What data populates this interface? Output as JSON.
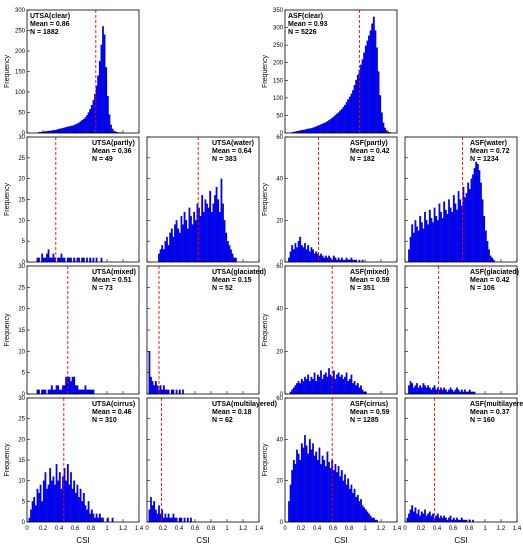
{
  "chart_data": [
    {
      "type": "bar",
      "id": "utsa-clear",
      "title": "UTSA(clear)",
      "mean_label": "Mean = 0.86",
      "n_label": "N = 1882",
      "mean": 0.86,
      "ylabel": "Frequency",
      "xlabel": "",
      "xlim": [
        0,
        1.4
      ],
      "ylim": [
        0,
        300
      ],
      "yticks": [
        "0",
        "50",
        "100",
        "150",
        "200",
        "250",
        "300"
      ],
      "xticks": [],
      "bin_start": 0.0,
      "bin_width": 0.02,
      "values": [
        0,
        0,
        0,
        0,
        0,
        0,
        0,
        2,
        2,
        3,
        3,
        4,
        4,
        5,
        5,
        6,
        7,
        7,
        8,
        9,
        10,
        11,
        12,
        13,
        14,
        15,
        16,
        17,
        18,
        19,
        21,
        23,
        25,
        28,
        31,
        34,
        38,
        43,
        50,
        58,
        68,
        80,
        95,
        115,
        140,
        175,
        215,
        260,
        240,
        160,
        90,
        45,
        20,
        10,
        5,
        3,
        2,
        1,
        1,
        1,
        0,
        0,
        0,
        0,
        0,
        0,
        0,
        0,
        0,
        0
      ]
    },
    {
      "type": "bar",
      "id": "asf-clear",
      "title": "ASF(clear)",
      "mean_label": "Mean = 0.93",
      "n_label": "N = 5226",
      "mean": 0.93,
      "ylabel": "Frequency",
      "xlabel": "",
      "xlim": [
        0,
        1.4
      ],
      "ylim": [
        0,
        360
      ],
      "yticks": [
        "0",
        "50",
        "100",
        "150",
        "200",
        "250",
        "300",
        "350"
      ],
      "xticks": [],
      "bin_start": 0.0,
      "bin_width": 0.02,
      "values": [
        0,
        0,
        0,
        0,
        2,
        3,
        4,
        5,
        6,
        7,
        8,
        9,
        10,
        11,
        12,
        13,
        14,
        15,
        17,
        19,
        21,
        23,
        25,
        27,
        29,
        31,
        34,
        37,
        40,
        44,
        48,
        52,
        56,
        60,
        65,
        70,
        76,
        82,
        90,
        98,
        106,
        115,
        125,
        140,
        155,
        170,
        185,
        200,
        215,
        235,
        255,
        270,
        285,
        300,
        320,
        340,
        300,
        250,
        180,
        110,
        60,
        30,
        15,
        8,
        4,
        2,
        1,
        0,
        0,
        0
      ]
    },
    {
      "type": "bar",
      "id": "utsa-partly",
      "title": "UTSA(partly)",
      "mean_label": "Mean = 0.36",
      "n_label": "N = 49",
      "mean": 0.36,
      "ylabel": "Frequency",
      "xlabel": "",
      "xlim": [
        0,
        1.4
      ],
      "ylim": [
        0,
        30
      ],
      "yticks": [
        "0",
        "5",
        "10",
        "15",
        "20",
        "25",
        "30"
      ],
      "xticks": [],
      "bin_start": 0.0,
      "bin_width": 0.02,
      "values": [
        0,
        0,
        0,
        0,
        0,
        0,
        1,
        1,
        0,
        2,
        1,
        1,
        2,
        3,
        1,
        1,
        2,
        1,
        0,
        1,
        1,
        2,
        1,
        1,
        0,
        1,
        1,
        1,
        0,
        1,
        0,
        1,
        1,
        0,
        1,
        1,
        0,
        1,
        0,
        1,
        0,
        1,
        0,
        1,
        0,
        0,
        1,
        0,
        0,
        0,
        0,
        0,
        0,
        0,
        0,
        0,
        0,
        0,
        0,
        0,
        0,
        0,
        0,
        0,
        0,
        0,
        0,
        0,
        0,
        0
      ]
    },
    {
      "type": "bar",
      "id": "utsa-water",
      "title": "UTSA(water)",
      "mean_label": "Mean = 0.64",
      "n_label": "N = 383",
      "mean": 0.64,
      "ylabel": "",
      "xlabel": "",
      "xlim": [
        0,
        1.4
      ],
      "ylim": [
        0,
        30
      ],
      "yticks": [],
      "xticks": [],
      "bin_start": 0.0,
      "bin_width": 0.02,
      "values": [
        0,
        0,
        0,
        0,
        0,
        0,
        0,
        2,
        3,
        4,
        3,
        5,
        6,
        4,
        7,
        8,
        6,
        9,
        10,
        8,
        7,
        11,
        9,
        12,
        10,
        8,
        13,
        11,
        9,
        12,
        10,
        14,
        13,
        11,
        16,
        12,
        15,
        14,
        13,
        17,
        12,
        14,
        16,
        18,
        15,
        12,
        20,
        14,
        10,
        7,
        5,
        4,
        3,
        2,
        1,
        1,
        0,
        0,
        0,
        0,
        0,
        0,
        0,
        0,
        0,
        0,
        0,
        0,
        0,
        0
      ]
    },
    {
      "type": "bar",
      "id": "asf-partly",
      "title": "ASF(partly)",
      "mean_label": "Mean = 0.42",
      "n_label": "N = 182",
      "mean": 0.42,
      "ylabel": "Frequency",
      "xlabel": "",
      "xlim": [
        0,
        1.4
      ],
      "ylim": [
        0,
        60
      ],
      "yticks": [
        "0",
        "20",
        "40",
        "60"
      ],
      "xticks": [],
      "bin_start": 0.0,
      "bin_width": 0.02,
      "values": [
        0,
        0,
        2,
        5,
        8,
        6,
        9,
        7,
        10,
        12,
        8,
        7,
        9,
        6,
        8,
        5,
        7,
        6,
        4,
        5,
        4,
        3,
        4,
        3,
        2,
        3,
        2,
        3,
        2,
        1,
        3,
        2,
        1,
        2,
        1,
        2,
        1,
        1,
        2,
        1,
        1,
        2,
        1,
        1,
        1,
        0,
        1,
        0,
        1,
        0,
        0,
        0,
        0,
        0,
        0,
        0,
        0,
        0,
        0,
        0,
        0,
        0,
        0,
        0,
        0,
        0,
        0,
        0,
        0,
        0
      ]
    },
    {
      "type": "bar",
      "id": "asf-water",
      "title": "ASF(water)",
      "mean_label": "Mean = 0.72",
      "n_label": "N = 1234",
      "mean": 0.72,
      "ylabel": "",
      "xlabel": "",
      "xlim": [
        0,
        1.4
      ],
      "ylim": [
        0,
        60
      ],
      "yticks": [],
      "xticks": [],
      "bin_start": 0.0,
      "bin_width": 0.02,
      "values": [
        0,
        0,
        6,
        12,
        18,
        14,
        20,
        17,
        15,
        22,
        19,
        16,
        24,
        20,
        18,
        25,
        21,
        19,
        26,
        22,
        20,
        28,
        24,
        21,
        29,
        25,
        23,
        30,
        26,
        24,
        32,
        28,
        25,
        34,
        30,
        27,
        36,
        31,
        33,
        38,
        35,
        40,
        42,
        45,
        48,
        47,
        44,
        38,
        30,
        22,
        15,
        10,
        6,
        3,
        2,
        1,
        0,
        0,
        0,
        0,
        0,
        0,
        0,
        0,
        0,
        0,
        0,
        0,
        0,
        0
      ]
    },
    {
      "type": "bar",
      "id": "utsa-mixed",
      "title": "UTSA(mixed)",
      "mean_label": "Mean = 0.51",
      "n_label": "N = 73",
      "mean": 0.51,
      "ylabel": "Frequency",
      "xlabel": "",
      "xlim": [
        0,
        1.4
      ],
      "ylim": [
        0,
        30
      ],
      "yticks": [
        "0",
        "5",
        "10",
        "15",
        "20",
        "25",
        "30"
      ],
      "xticks": [],
      "bin_start": 0.0,
      "bin_width": 0.02,
      "values": [
        0,
        0,
        0,
        0,
        0,
        0,
        1,
        1,
        0,
        1,
        1,
        1,
        0,
        1,
        1,
        2,
        1,
        1,
        2,
        2,
        1,
        1,
        2,
        2,
        4,
        4,
        4,
        3,
        4,
        4,
        2,
        2,
        1,
        1,
        1,
        1,
        2,
        1,
        1,
        1,
        1,
        1,
        0,
        0,
        0,
        0,
        0,
        0,
        0,
        0,
        0,
        0,
        0,
        0,
        0,
        0,
        0,
        0,
        0,
        0,
        0,
        0,
        0,
        0,
        0,
        0,
        0,
        0,
        0,
        0
      ]
    },
    {
      "type": "bar",
      "id": "utsa-glaciated",
      "title": "UTSA(glaciated)",
      "mean_label": "Mean = 0.15",
      "n_label": "N = 52",
      "mean": 0.15,
      "ylabel": "",
      "xlabel": "",
      "xlim": [
        0,
        1.4
      ],
      "ylim": [
        0,
        30
      ],
      "yticks": [],
      "xticks": [],
      "bin_start": 0.0,
      "bin_width": 0.02,
      "values": [
        0,
        10,
        4,
        3,
        2,
        3,
        2,
        1,
        2,
        1,
        2,
        1,
        1,
        1,
        0,
        1,
        1,
        0,
        1,
        0,
        1,
        0,
        1,
        0,
        0,
        0,
        0,
        0,
        0,
        0,
        0,
        0,
        0,
        0,
        0,
        0,
        0,
        0,
        0,
        0,
        0,
        0,
        0,
        0,
        0,
        0,
        0,
        0,
        0,
        0,
        0,
        0,
        0,
        0,
        0,
        0,
        0,
        0,
        0,
        0,
        0,
        0,
        0,
        0,
        0,
        0,
        0,
        0,
        0,
        0
      ]
    },
    {
      "type": "bar",
      "id": "asf-mixed",
      "title": "ASF(mixed)",
      "mean_label": "Mean = 0.59",
      "n_label": "N = 351",
      "mean": 0.59,
      "ylabel": "Frequency",
      "xlabel": "",
      "xlim": [
        0,
        1.4
      ],
      "ylim": [
        0,
        60
      ],
      "yticks": [
        "0",
        "20",
        "40",
        "60"
      ],
      "xticks": [],
      "bin_start": 0.0,
      "bin_width": 0.02,
      "values": [
        0,
        0,
        0,
        1,
        2,
        3,
        4,
        5,
        6,
        5,
        7,
        6,
        8,
        7,
        9,
        6,
        8,
        7,
        10,
        6,
        9,
        8,
        11,
        7,
        9,
        10,
        8,
        12,
        9,
        8,
        11,
        7,
        9,
        10,
        8,
        9,
        7,
        8,
        10,
        6,
        7,
        9,
        5,
        6,
        4,
        5,
        3,
        4,
        2,
        1,
        1,
        0,
        0,
        0,
        0,
        0,
        0,
        0,
        0,
        0,
        0,
        0,
        0,
        0,
        0,
        0,
        0,
        0,
        0,
        0
      ]
    },
    {
      "type": "bar",
      "id": "asf-glaciated",
      "title": "ASF(glaciated)",
      "mean_label": "Mean = 0.42",
      "n_label": "N = 106",
      "mean": 0.42,
      "ylabel": "",
      "xlabel": "",
      "xlim": [
        0,
        1.4
      ],
      "ylim": [
        0,
        60
      ],
      "yticks": [],
      "xticks": [],
      "bin_start": 0.0,
      "bin_width": 0.02,
      "values": [
        0,
        0,
        4,
        6,
        5,
        3,
        4,
        5,
        3,
        4,
        3,
        5,
        4,
        3,
        4,
        3,
        2,
        3,
        4,
        2,
        3,
        2,
        3,
        2,
        3,
        2,
        1,
        2,
        3,
        2,
        1,
        2,
        3,
        2,
        1,
        2,
        1,
        2,
        1,
        1,
        2,
        1,
        1,
        1,
        0,
        0,
        0,
        0,
        0,
        0,
        0,
        0,
        0,
        0,
        0,
        0,
        0,
        0,
        0,
        0,
        0,
        0,
        0,
        0,
        0,
        0,
        0,
        0,
        0,
        0
      ]
    },
    {
      "type": "bar",
      "id": "utsa-cirrus",
      "title": "UTSA(cirrus)",
      "mean_label": "Mean = 0.46",
      "n_label": "N = 310",
      "mean": 0.46,
      "ylabel": "Frequency",
      "xlabel": "CSI",
      "xlim": [
        0,
        1.4
      ],
      "ylim": [
        0,
        30
      ],
      "yticks": [
        "0",
        "5",
        "10",
        "15",
        "20",
        "25",
        "30"
      ],
      "xticks": [
        "0",
        "0.2",
        "0.4",
        "0.6",
        "0.8",
        "1",
        "1.2",
        "1.4"
      ],
      "bin_start": 0.0,
      "bin_width": 0.02,
      "values": [
        0,
        1,
        3,
        5,
        6,
        4,
        8,
        7,
        9,
        5,
        10,
        12,
        8,
        9,
        13,
        10,
        11,
        9,
        14,
        10,
        12,
        8,
        11,
        13,
        10,
        14,
        9,
        12,
        8,
        10,
        7,
        9,
        6,
        8,
        5,
        7,
        4,
        3,
        5,
        2,
        3,
        2,
        1,
        2,
        1,
        2,
        1,
        1,
        0,
        0,
        1,
        0,
        0,
        1,
        0,
        0,
        0,
        0,
        0,
        0,
        0,
        0,
        0,
        0,
        0,
        0,
        0,
        0,
        0,
        0
      ]
    },
    {
      "type": "bar",
      "id": "utsa-multilayered",
      "title": "UTSA(multilayered)",
      "mean_label": "Mean = 0.18",
      "n_label": "N = 62",
      "mean": 0.18,
      "ylabel": "",
      "xlabel": "CSI",
      "xlim": [
        0,
        1.4
      ],
      "ylim": [
        0,
        30
      ],
      "yticks": [],
      "xticks": [
        "0",
        "0.2",
        "0.4",
        "0.6",
        "0.8",
        "1",
        "1.2",
        "1.4"
      ],
      "bin_start": 0.0,
      "bin_width": 0.02,
      "values": [
        0,
        3,
        6,
        4,
        5,
        3,
        2,
        4,
        2,
        3,
        1,
        2,
        1,
        2,
        1,
        1,
        2,
        1,
        1,
        0,
        1,
        1,
        0,
        1,
        0,
        1,
        0,
        1,
        0,
        0,
        0,
        0,
        0,
        0,
        0,
        0,
        0,
        0,
        0,
        0,
        0,
        0,
        0,
        0,
        0,
        0,
        0,
        0,
        0,
        0,
        0,
        0,
        0,
        0,
        0,
        0,
        0,
        0,
        0,
        0,
        0,
        0,
        0,
        0,
        0,
        0,
        0,
        0,
        0,
        0
      ]
    },
    {
      "type": "bar",
      "id": "asf-cirrus",
      "title": "ASF(cirrus)",
      "mean_label": "Mean = 0.59",
      "n_label": "N = 1285",
      "mean": 0.59,
      "ylabel": "Frequency",
      "xlabel": "CSI",
      "xlim": [
        0,
        1.4
      ],
      "ylim": [
        0,
        60
      ],
      "yticks": [
        "0",
        "20",
        "40",
        "60"
      ],
      "xticks": [
        "0",
        "0.2",
        "0.4",
        "0.6",
        "0.8",
        "1",
        "1.2",
        "1.4"
      ],
      "bin_start": 0.0,
      "bin_width": 0.02,
      "values": [
        0,
        0,
        10,
        18,
        25,
        30,
        28,
        35,
        33,
        30,
        38,
        36,
        42,
        37,
        33,
        40,
        35,
        38,
        32,
        34,
        30,
        36,
        28,
        32,
        30,
        27,
        34,
        29,
        26,
        30,
        25,
        28,
        24,
        27,
        22,
        25,
        20,
        23,
        18,
        21,
        16,
        18,
        14,
        16,
        12,
        13,
        10,
        11,
        8,
        7,
        6,
        5,
        4,
        3,
        2,
        2,
        1,
        1,
        0,
        0,
        0,
        0,
        0,
        0,
        0,
        0,
        0,
        0,
        0,
        0
      ]
    },
    {
      "type": "bar",
      "id": "asf-multilayered",
      "title": "ASF(multilayered)",
      "mean_label": "Mean = 0.37",
      "n_label": "N = 160",
      "mean": 0.37,
      "ylabel": "",
      "xlabel": "CSI",
      "xlim": [
        0,
        1.4
      ],
      "ylim": [
        0,
        60
      ],
      "yticks": [],
      "xticks": [
        "0",
        "0.2",
        "0.4",
        "0.6",
        "0.8",
        "1",
        "1.2",
        "1.4"
      ],
      "bin_start": 0.0,
      "bin_width": 0.02,
      "values": [
        0,
        2,
        4,
        6,
        8,
        5,
        7,
        4,
        6,
        3,
        5,
        4,
        6,
        3,
        4,
        5,
        3,
        4,
        2,
        3,
        4,
        2,
        3,
        2,
        3,
        2,
        1,
        2,
        3,
        1,
        2,
        1,
        2,
        1,
        1,
        2,
        1,
        1,
        1,
        0,
        1,
        0,
        1,
        0,
        0,
        0,
        0,
        0,
        0,
        0,
        0,
        0,
        0,
        0,
        0,
        0,
        0,
        0,
        0,
        0,
        0,
        0,
        0,
        0,
        0,
        0,
        0,
        0,
        0,
        0
      ]
    }
  ],
  "colors": {
    "bar": "#0000ff",
    "bar_edge": "#000080",
    "mean_line": "#ff0000"
  }
}
